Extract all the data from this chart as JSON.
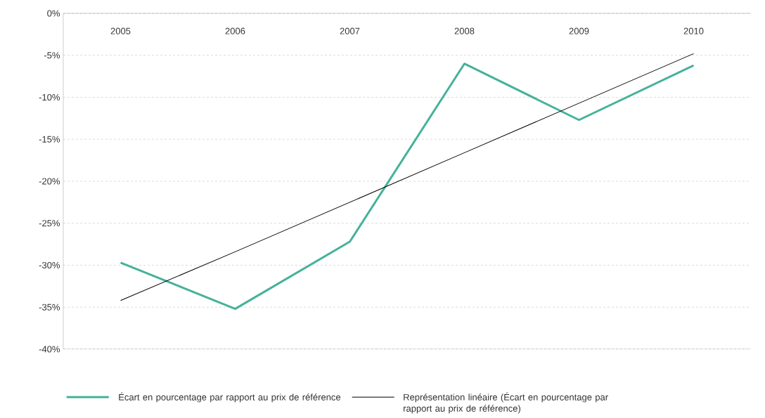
{
  "chart_data": {
    "type": "line",
    "categories": [
      "2005",
      "2006",
      "2007",
      "2008",
      "2009",
      "2010"
    ],
    "series": [
      {
        "name": "Écart en pourcentage par rapport au prix de référence",
        "color": "#45b29a",
        "values": [
          -29.7,
          -35.2,
          -27.2,
          -6.0,
          -12.7,
          -6.2
        ]
      },
      {
        "name": "Représentation linéaire (Écart en pourcentage par rapport au prix de référence)",
        "color": "#000000",
        "values": [
          -34.2,
          -28.4,
          -22.5,
          -16.6,
          -10.7,
          -4.8
        ]
      }
    ],
    "ylim": [
      -40,
      0
    ],
    "yticks": [
      {
        "value": -40,
        "label": "-40%"
      },
      {
        "value": -35,
        "label": "-35%"
      },
      {
        "value": -30,
        "label": "-30%"
      },
      {
        "value": -25,
        "label": "-25%"
      },
      {
        "value": -20,
        "label": "-20%"
      },
      {
        "value": -15,
        "label": "-15%"
      },
      {
        "value": -10,
        "label": "-10%"
      },
      {
        "value": -5,
        "label": "-5%"
      },
      {
        "value": 0,
        "label": "0%"
      }
    ],
    "grid": "y",
    "legend": "bottom",
    "marker": "none",
    "line_style": "solid"
  }
}
